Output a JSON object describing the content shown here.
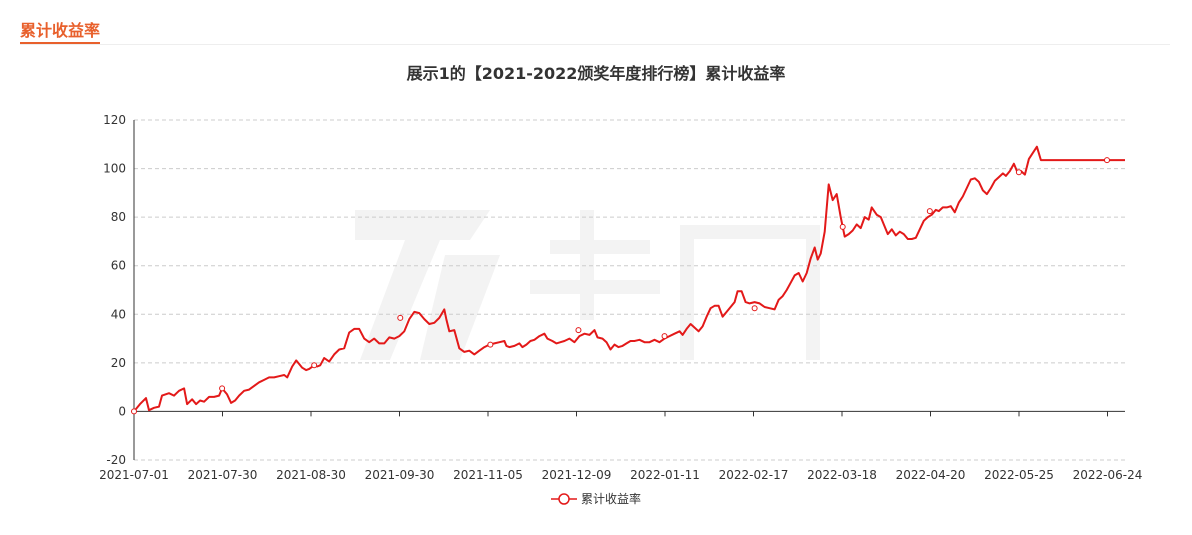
{
  "header": {
    "title": "累计收益率"
  },
  "colors": {
    "accent": "#e8602c",
    "series": "#e31919"
  },
  "chart_data": {
    "type": "line",
    "title": "展示1的【2021-2022颁奖年度排行榜】累计收益率",
    "xlabel": "",
    "ylabel": "",
    "ylim": [
      -20,
      120
    ],
    "yticks": [
      -20,
      0,
      20,
      40,
      60,
      80,
      100,
      120
    ],
    "xtick_labels": [
      "2021-07-01",
      "2021-07-30",
      "2021-08-30",
      "2021-09-30",
      "2021-11-05",
      "2021-12-09",
      "2022-01-11",
      "2022-02-17",
      "2022-03-18",
      "2022-04-20",
      "2022-05-25",
      "2022-06-24"
    ],
    "grid": "horizontal dashed",
    "legend": "bottom-center",
    "series": [
      {
        "name": "累计收益率",
        "points": [
          [
            0,
            0
          ],
          [
            6,
            3
          ],
          [
            12,
            5.5
          ],
          [
            15,
            0.5
          ],
          [
            20,
            1.5
          ],
          [
            25,
            2
          ],
          [
            28,
            6.5
          ],
          [
            35,
            7.5
          ],
          [
            40,
            6.5
          ],
          [
            45,
            8.5
          ],
          [
            50,
            9.5
          ],
          [
            53,
            3
          ],
          [
            58,
            5
          ],
          [
            62,
            3
          ],
          [
            66,
            4.5
          ],
          [
            70,
            4
          ],
          [
            75,
            6
          ],
          [
            80,
            6
          ],
          [
            85,
            6.5
          ],
          [
            88,
            9.5
          ],
          [
            93,
            7
          ],
          [
            97,
            3.5
          ],
          [
            101,
            4.5
          ],
          [
            105,
            6.5
          ],
          [
            110,
            8.5
          ],
          [
            115,
            9
          ],
          [
            120,
            10.5
          ],
          [
            125,
            12
          ],
          [
            130,
            13
          ],
          [
            135,
            14
          ],
          [
            140,
            14
          ],
          [
            145,
            14.5
          ],
          [
            150,
            15
          ],
          [
            153,
            14
          ],
          [
            158,
            18.5
          ],
          [
            162,
            21
          ],
          [
            168,
            18
          ],
          [
            172,
            17
          ],
          [
            175,
            17.5
          ],
          [
            180,
            19
          ],
          [
            183,
            18.5
          ],
          [
            186,
            19
          ],
          [
            190,
            22
          ],
          [
            195,
            20.5
          ],
          [
            200,
            23.5
          ],
          [
            205,
            25.5
          ],
          [
            210,
            26
          ],
          [
            215,
            32.5
          ],
          [
            220,
            34
          ],
          [
            225,
            34
          ],
          [
            230,
            30
          ],
          [
            235,
            28.5
          ],
          [
            240,
            30
          ],
          [
            245,
            28
          ],
          [
            250,
            28
          ],
          [
            255,
            30.5
          ],
          [
            260,
            30
          ],
          [
            265,
            31
          ],
          [
            270,
            33
          ],
          [
            275,
            38
          ],
          [
            280,
            41
          ],
          [
            285,
            40.5
          ],
          [
            290,
            38
          ],
          [
            295,
            36
          ],
          [
            300,
            36.5
          ],
          [
            305,
            38.5
          ],
          [
            310,
            42
          ],
          [
            312,
            38
          ],
          [
            315,
            33
          ],
          [
            320,
            33.5
          ],
          [
            325,
            26
          ],
          [
            330,
            24.5
          ],
          [
            335,
            25
          ],
          [
            340,
            23.5
          ],
          [
            345,
            25
          ],
          [
            350,
            26.5
          ],
          [
            355,
            27.5
          ],
          [
            360,
            28
          ],
          [
            365,
            28.5
          ],
          [
            370,
            29
          ],
          [
            372,
            27
          ],
          [
            375,
            26.5
          ],
          [
            380,
            27
          ],
          [
            385,
            28
          ],
          [
            388,
            26.5
          ],
          [
            392,
            27.5
          ],
          [
            396,
            29
          ],
          [
            400,
            29.5
          ],
          [
            405,
            31
          ],
          [
            410,
            32
          ],
          [
            413,
            30
          ],
          [
            418,
            29
          ],
          [
            422,
            28
          ],
          [
            426,
            28.5
          ],
          [
            430,
            29
          ],
          [
            435,
            30
          ],
          [
            440,
            28.5
          ],
          [
            445,
            31
          ],
          [
            450,
            32
          ],
          [
            455,
            31.5
          ],
          [
            460,
            33.5
          ],
          [
            463,
            30.5
          ],
          [
            468,
            30
          ],
          [
            472,
            28.5
          ],
          [
            476,
            25.5
          ],
          [
            480,
            27.5
          ],
          [
            484,
            26.5
          ],
          [
            488,
            27
          ],
          [
            492,
            28
          ],
          [
            496,
            29
          ],
          [
            500,
            29
          ],
          [
            505,
            29.5
          ],
          [
            510,
            28.5
          ],
          [
            515,
            28.5
          ],
          [
            520,
            29.5
          ],
          [
            525,
            28.5
          ],
          [
            530,
            30
          ],
          [
            535,
            31
          ],
          [
            540,
            32
          ],
          [
            545,
            33
          ],
          [
            548,
            31.5
          ],
          [
            552,
            34
          ],
          [
            556,
            36
          ],
          [
            560,
            34.5
          ],
          [
            564,
            33
          ],
          [
            568,
            35
          ],
          [
            572,
            39
          ],
          [
            576,
            42.5
          ],
          [
            580,
            43.5
          ],
          [
            584,
            43.5
          ],
          [
            588,
            39
          ],
          [
            592,
            41
          ],
          [
            596,
            43
          ],
          [
            600,
            45
          ],
          [
            603,
            49.5
          ],
          [
            607,
            49.5
          ],
          [
            611,
            45
          ],
          [
            615,
            44.5
          ],
          [
            620,
            45
          ],
          [
            625,
            44.5
          ],
          [
            630,
            43
          ],
          [
            635,
            42.5
          ],
          [
            640,
            42
          ],
          [
            644,
            46
          ],
          [
            648,
            47.5
          ],
          [
            652,
            50
          ],
          [
            656,
            53
          ],
          [
            660,
            56
          ],
          [
            664,
            57
          ],
          [
            668,
            53.5
          ],
          [
            672,
            57
          ],
          [
            676,
            63
          ],
          [
            680,
            67.5
          ],
          [
            683,
            62.5
          ],
          [
            686,
            65
          ],
          [
            690,
            74
          ],
          [
            694,
            93.5
          ],
          [
            698,
            87
          ],
          [
            702,
            89.5
          ],
          [
            706,
            80
          ],
          [
            710,
            72
          ],
          [
            714,
            73
          ],
          [
            718,
            74.5
          ],
          [
            722,
            77
          ],
          [
            726,
            75.5
          ],
          [
            730,
            80
          ],
          [
            734,
            79
          ],
          [
            737,
            84
          ],
          [
            742,
            81
          ],
          [
            746,
            80
          ],
          [
            750,
            76
          ],
          [
            753,
            73
          ],
          [
            757,
            75
          ],
          [
            761,
            72.5
          ],
          [
            765,
            74
          ],
          [
            769,
            73
          ],
          [
            773,
            71
          ],
          [
            777,
            71
          ],
          [
            781,
            71.5
          ],
          [
            785,
            75
          ],
          [
            789,
            78.5
          ],
          [
            793,
            80
          ],
          [
            797,
            81
          ],
          [
            801,
            83
          ],
          [
            804,
            82.5
          ],
          [
            808,
            84
          ],
          [
            812,
            84
          ],
          [
            816,
            84.5
          ],
          [
            820,
            82
          ],
          [
            824,
            86
          ],
          [
            828,
            88.5
          ],
          [
            832,
            92
          ],
          [
            836,
            95.5
          ],
          [
            840,
            96
          ],
          [
            844,
            94.5
          ],
          [
            848,
            91
          ],
          [
            852,
            89.5
          ],
          [
            856,
            92
          ],
          [
            860,
            95
          ],
          [
            864,
            96.5
          ],
          [
            868,
            98
          ],
          [
            871,
            97
          ],
          [
            875,
            99
          ],
          [
            879,
            102
          ],
          [
            883,
            98
          ],
          [
            886,
            99
          ],
          [
            890,
            97.5
          ],
          [
            894,
            104
          ],
          [
            898,
            106.5
          ],
          [
            902,
            109
          ],
          [
            906,
            103.5
          ],
          [
            912,
            103.5
          ],
          [
            920,
            103.5
          ],
          [
            940,
            103.5
          ],
          [
            960,
            103.5
          ],
          [
            980,
            103.5
          ],
          [
            990,
            103.5
          ]
        ],
        "markers": [
          [
            0,
            0
          ],
          [
            88,
            9.5
          ],
          [
            180,
            19
          ],
          [
            266,
            38.5
          ],
          [
            356,
            27.5
          ],
          [
            444,
            33.5
          ],
          [
            530,
            31
          ],
          [
            620,
            42.5
          ],
          [
            708,
            76
          ],
          [
            795,
            82.5
          ],
          [
            884,
            98.5
          ],
          [
            972,
            103.5
          ]
        ]
      }
    ]
  }
}
